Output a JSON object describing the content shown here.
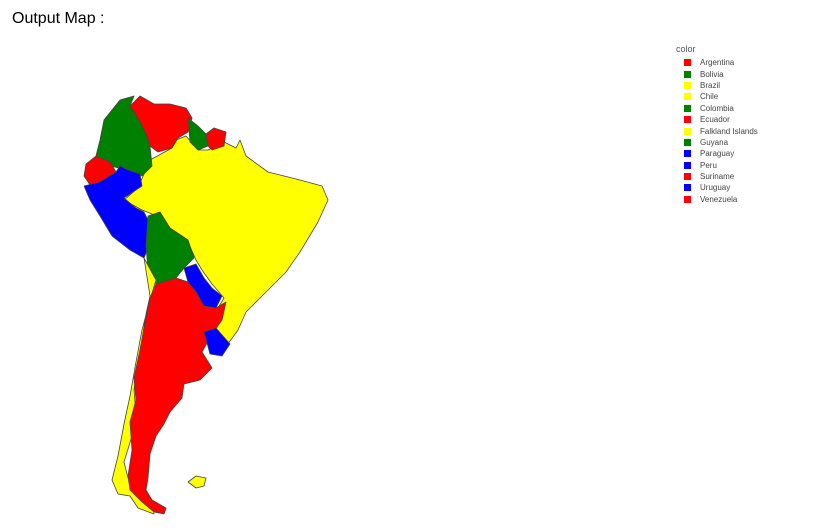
{
  "heading": "Output Map :",
  "legend": {
    "title": "color",
    "items": [
      {
        "name": "Argentina",
        "color": "#ff0000"
      },
      {
        "name": "Bolivia",
        "color": "#008000"
      },
      {
        "name": "Brazil",
        "color": "#ffff00"
      },
      {
        "name": "Chile",
        "color": "#ffff00"
      },
      {
        "name": "Colombia",
        "color": "#008000"
      },
      {
        "name": "Ecuador",
        "color": "#ff0000"
      },
      {
        "name": "Falkland Islands",
        "color": "#ffff00"
      },
      {
        "name": "Guyana",
        "color": "#008000"
      },
      {
        "name": "Paraguay",
        "color": "#0000ff"
      },
      {
        "name": "Peru",
        "color": "#0000ff"
      },
      {
        "name": "Suriname",
        "color": "#ff0000"
      },
      {
        "name": "Uruguay",
        "color": "#0000ff"
      },
      {
        "name": "Venezuela",
        "color": "#ff0000"
      }
    ]
  }
}
